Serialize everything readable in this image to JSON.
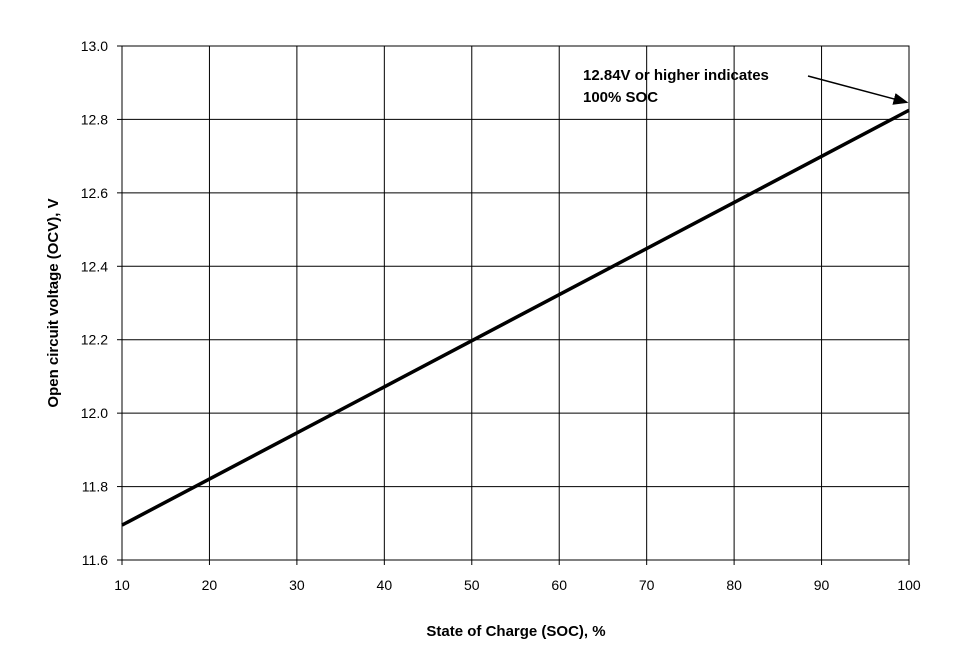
{
  "chart_data": {
    "type": "line",
    "title": "",
    "xlabel": "State of Charge (SOC), %",
    "ylabel": "Open circuit voltage (OCV), V",
    "xlim": [
      10,
      100
    ],
    "ylim": [
      11.6,
      13.0
    ],
    "x_ticks": [
      10,
      20,
      30,
      40,
      50,
      60,
      70,
      80,
      90,
      100
    ],
    "y_ticks": [
      "11.6",
      "11.8",
      "12.0",
      "12.2",
      "12.4",
      "12.6",
      "12.8",
      "13.0"
    ],
    "grid": true,
    "legend": "none",
    "series": [
      {
        "x": [
          10,
          100
        ],
        "y": [
          11.695,
          12.825
        ],
        "color": "#000000"
      }
    ],
    "annotation": {
      "lines": [
        "12.84V or higher indicates",
        "100% SOC"
      ],
      "arrow_target": {
        "x": 100,
        "y": 12.83
      }
    }
  }
}
